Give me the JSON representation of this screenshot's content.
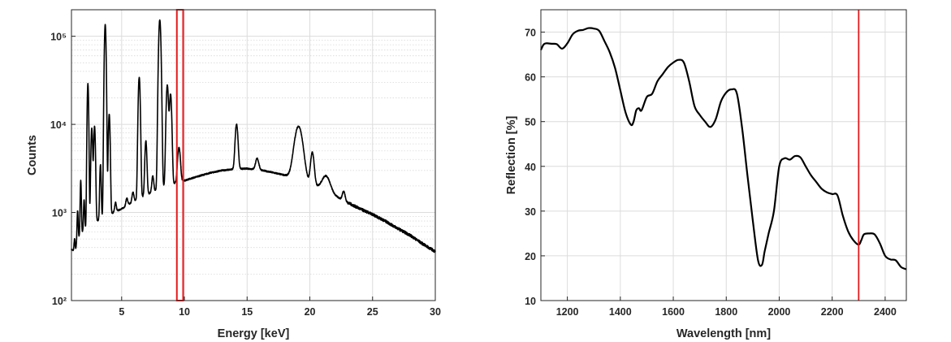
{
  "chart_data": [
    {
      "type": "line",
      "title": "",
      "xlabel": "Energy [keV]",
      "ylabel": "Counts",
      "yscale": "log",
      "xlim": [
        1,
        30
      ],
      "ylim": [
        100,
        200000
      ],
      "x_ticks": [
        5,
        10,
        15,
        20,
        25,
        30
      ],
      "x_tick_labels": [
        "5",
        "10",
        "15",
        "20",
        "25",
        "30"
      ],
      "y_ticks": [
        100,
        1000,
        10000,
        100000
      ],
      "y_tick_labels": [
        "10²",
        "10³",
        "10⁴",
        "10⁵"
      ],
      "grid": "on, with minor log grid",
      "line_color": "#000000",
      "highlight": {
        "type": "rectangle",
        "x_range": [
          9.4,
          9.9
        ],
        "color": "#e41a1c"
      },
      "series": [
        {
          "baseline": [
            [
              1.0,
              380
            ],
            [
              1.3,
              360
            ],
            [
              1.5,
              500
            ],
            [
              2.0,
              650
            ],
            [
              3.0,
              800
            ],
            [
              4.0,
              950
            ],
            [
              5.0,
              1100
            ],
            [
              6.0,
              1350
            ],
            [
              7.0,
              1600
            ],
            [
              8.0,
              1850
            ],
            [
              9.0,
              2100
            ],
            [
              9.5,
              2200
            ],
            [
              10.0,
              2300
            ],
            [
              11.0,
              2550
            ],
            [
              12.0,
              2800
            ],
            [
              13.0,
              3000
            ],
            [
              14.0,
              3100
            ],
            [
              15.0,
              3150
            ],
            [
              16.0,
              3050
            ],
            [
              17.0,
              2850
            ],
            [
              18.0,
              2650
            ],
            [
              19.0,
              2400
            ],
            [
              20.0,
              2150
            ],
            [
              21.0,
              1850
            ],
            [
              22.0,
              1550
            ],
            [
              23.0,
              1300
            ],
            [
              24.0,
              1100
            ],
            [
              25.0,
              950
            ],
            [
              26.0,
              800
            ],
            [
              27.0,
              660
            ],
            [
              28.0,
              550
            ],
            [
              29.0,
              440
            ],
            [
              30.0,
              360
            ]
          ],
          "peaks": [
            {
              "energy": 1.25,
              "counts": 500,
              "width": 0.04
            },
            {
              "energy": 1.49,
              "counts": 1050,
              "width": 0.04
            },
            {
              "energy": 1.74,
              "counts": 2300,
              "width": 0.04
            },
            {
              "energy": 2.01,
              "counts": 1400,
              "width": 0.04
            },
            {
              "energy": 2.31,
              "counts": 29000,
              "width": 0.05
            },
            {
              "energy": 2.62,
              "counts": 9000,
              "width": 0.06
            },
            {
              "energy": 2.84,
              "counts": 9500,
              "width": 0.06
            },
            {
              "energy": 3.31,
              "counts": 3500,
              "width": 0.05
            },
            {
              "energy": 3.69,
              "counts": 135000,
              "width": 0.06
            },
            {
              "energy": 4.01,
              "counts": 13000,
              "width": 0.06
            },
            {
              "energy": 4.51,
              "counts": 1300,
              "width": 0.06
            },
            {
              "energy": 5.41,
              "counts": 1450,
              "width": 0.07
            },
            {
              "energy": 5.9,
              "counts": 1700,
              "width": 0.07
            },
            {
              "energy": 6.4,
              "counts": 34000,
              "width": 0.07
            },
            {
              "energy": 6.93,
              "counts": 6500,
              "width": 0.07
            },
            {
              "energy": 7.48,
              "counts": 2600,
              "width": 0.07
            },
            {
              "energy": 8.04,
              "counts": 155000,
              "width": 0.08
            },
            {
              "energy": 8.64,
              "counts": 28000,
              "width": 0.08
            },
            {
              "energy": 8.9,
              "counts": 22000,
              "width": 0.08
            },
            {
              "energy": 9.57,
              "counts": 5500,
              "width": 0.1
            },
            {
              "energy": 14.16,
              "counts": 10000,
              "width": 0.1
            },
            {
              "energy": 15.8,
              "counts": 4100,
              "width": 0.12
            },
            {
              "energy": 19.1,
              "counts": 9500,
              "width": 0.3
            },
            {
              "energy": 20.2,
              "counts": 4800,
              "width": 0.13
            },
            {
              "energy": 21.3,
              "counts": 2600,
              "width": 0.3
            },
            {
              "energy": 22.7,
              "counts": 1750,
              "width": 0.1
            }
          ]
        }
      ]
    },
    {
      "type": "line",
      "title": "",
      "xlabel": "Wavelength [nm]",
      "ylabel": "Reflection [%]",
      "xlim": [
        1100,
        2480
      ],
      "ylim": [
        10,
        75
      ],
      "x_ticks": [
        1200,
        1400,
        1600,
        1800,
        2000,
        2200,
        2400
      ],
      "y_ticks": [
        10,
        20,
        30,
        40,
        50,
        60,
        70
      ],
      "grid": "on",
      "line_color": "#000000",
      "vline": {
        "x": 2300,
        "color": "#e41a1c"
      },
      "series": [
        {
          "x": [
            1100,
            1110,
            1120,
            1140,
            1160,
            1180,
            1200,
            1220,
            1240,
            1260,
            1280,
            1300,
            1320,
            1340,
            1360,
            1380,
            1400,
            1420,
            1440,
            1450,
            1460,
            1470,
            1480,
            1500,
            1520,
            1540,
            1560,
            1580,
            1600,
            1620,
            1640,
            1660,
            1680,
            1700,
            1720,
            1740,
            1760,
            1780,
            1800,
            1820,
            1840,
            1860,
            1880,
            1900,
            1920,
            1935,
            1945,
            1960,
            1980,
            2000,
            2020,
            2040,
            2060,
            2080,
            2100,
            2120,
            2140,
            2160,
            2180,
            2200,
            2220,
            2240,
            2260,
            2280,
            2300,
            2310,
            2320,
            2340,
            2360,
            2380,
            2400,
            2420,
            2440,
            2460,
            2480
          ],
          "values": [
            66,
            67.2,
            67.5,
            67.4,
            67.3,
            66.3,
            67.5,
            69.5,
            70.3,
            70.5,
            70.9,
            70.8,
            70.3,
            68,
            65.5,
            62,
            57,
            52,
            49.3,
            50,
            52.5,
            53,
            52.5,
            55.5,
            56.2,
            59,
            60.6,
            62.2,
            63.2,
            63.8,
            63.2,
            59,
            53.5,
            51.5,
            50,
            48.8,
            50.5,
            54.5,
            56.5,
            57.2,
            56.3,
            48.5,
            38,
            28,
            19,
            18,
            21,
            25,
            30,
            40,
            41.8,
            41.5,
            42.3,
            42,
            40,
            38,
            36.5,
            35,
            34.2,
            33.8,
            33.5,
            29,
            25.5,
            23.5,
            22.5,
            23.5,
            24.8,
            25,
            24.8,
            22.8,
            20,
            19.2,
            19,
            17.5,
            17
          ]
        }
      ]
    }
  ]
}
